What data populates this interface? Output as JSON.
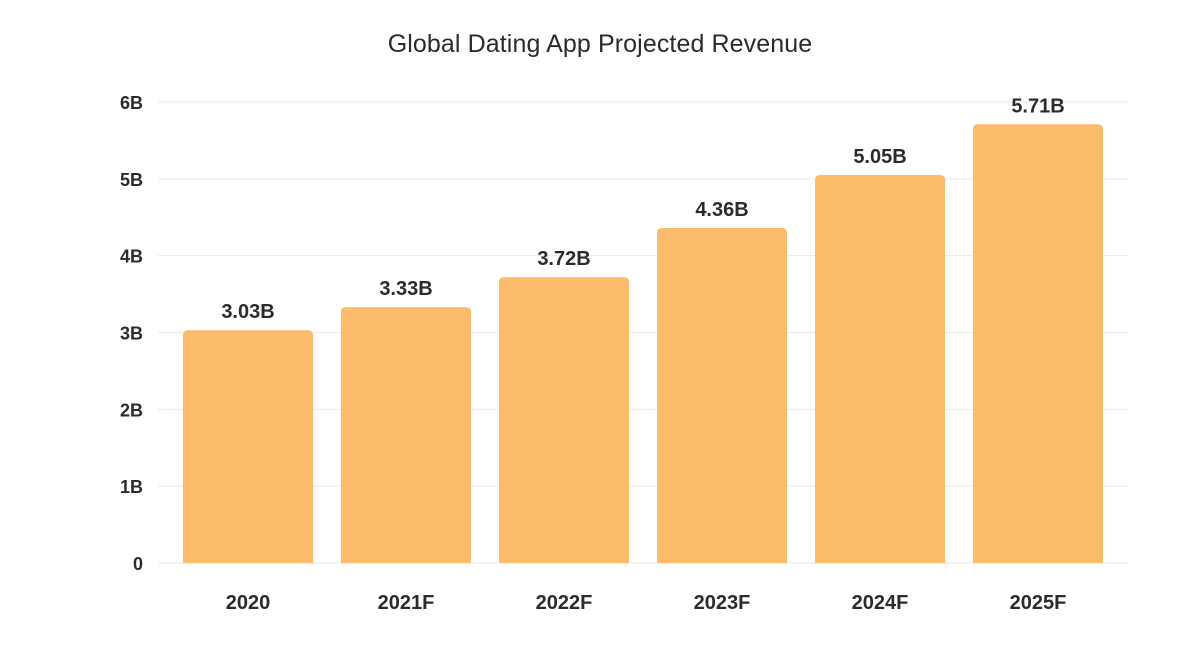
{
  "chart_data": {
    "type": "bar",
    "title": "Global Dating App Projected Revenue",
    "xlabel": "",
    "ylabel": "",
    "categories": [
      "2020",
      "2021F",
      "2022F",
      "2023F",
      "2024F",
      "2025F"
    ],
    "values": [
      3.03,
      3.33,
      3.72,
      4.36,
      5.05,
      5.71
    ],
    "value_labels": [
      "3.03B",
      "3.33B",
      "3.72B",
      "4.36B",
      "5.05B",
      "5.71B"
    ],
    "ylim": [
      0,
      6
    ],
    "yticks": [
      0,
      1,
      2,
      3,
      4,
      5,
      6
    ],
    "ytick_labels": [
      "0",
      "1B",
      "2B",
      "3B",
      "4B",
      "5B",
      "6B"
    ],
    "grid": true,
    "legend": "none",
    "bar_color": "#FDBB6C",
    "text_color": "#2B2B2B",
    "grid_color": "#E9E9E9"
  }
}
